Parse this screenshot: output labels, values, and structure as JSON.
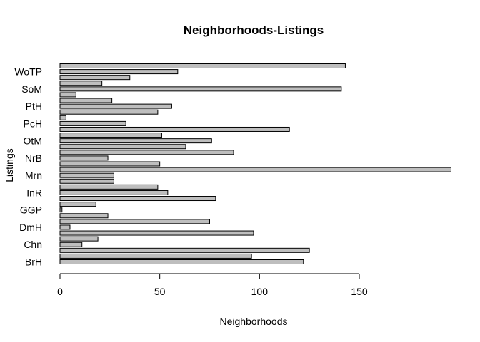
{
  "chart_data": {
    "type": "bar",
    "orientation": "horizontal",
    "title": "Neighborhoods-Listings",
    "xlabel": "Neighborhoods",
    "ylabel": "Listings",
    "xlim": [
      0,
      196
    ],
    "x_ticks": [
      0,
      50,
      100,
      150
    ],
    "y_tick_labels": [
      "BrH",
      "Chn",
      "DmH",
      "GGP",
      "InR",
      "Mrn",
      "NrB",
      "OtM",
      "PcH",
      "PtH",
      "SoM",
      "WoTP"
    ],
    "values": [
      122,
      96,
      125,
      11,
      19,
      97,
      5,
      75,
      24,
      1,
      18,
      78,
      54,
      49,
      27,
      27,
      196,
      50,
      24,
      87,
      63,
      76,
      51,
      115,
      33,
      3,
      49,
      56,
      26,
      8,
      141,
      21,
      35,
      59,
      143
    ],
    "bar_color": "#bebebe",
    "grid": false
  }
}
